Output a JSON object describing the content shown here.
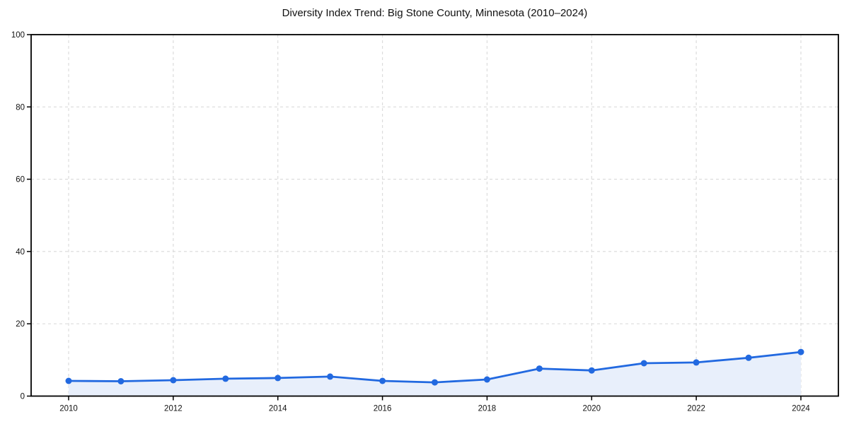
{
  "chart_data": {
    "type": "area",
    "title": "Diversity Index Trend: Big Stone County, Minnesota (2010–2024)",
    "x": [
      2010,
      2011,
      2012,
      2013,
      2014,
      2015,
      2016,
      2017,
      2018,
      2019,
      2020,
      2021,
      2022,
      2023,
      2024
    ],
    "series": [
      {
        "name": "Diversity Index",
        "values": [
          4.2,
          4.1,
          4.4,
          4.8,
          5.0,
          5.4,
          4.2,
          3.8,
          4.6,
          7.6,
          7.1,
          9.1,
          9.3,
          10.6,
          12.2
        ]
      }
    ],
    "xlabel": "",
    "ylabel": "",
    "xlim": [
      2010,
      2024
    ],
    "ylim": [
      0,
      100
    ],
    "xticks": [
      2010,
      2012,
      2014,
      2016,
      2018,
      2020,
      2022,
      2024
    ],
    "yticks": [
      0,
      20,
      40,
      60,
      80,
      100
    ],
    "grid": "dashed-both-axes",
    "legend": "none",
    "marker": "circle",
    "colors": {
      "line": "#2269e0",
      "marker": "#2269e0",
      "area_fill": "#e8effb",
      "gridline": "#dcdcdc",
      "spine": "#000000",
      "tick_text": "#111111",
      "title_text": "#111111",
      "background": "#ffffff"
    }
  }
}
